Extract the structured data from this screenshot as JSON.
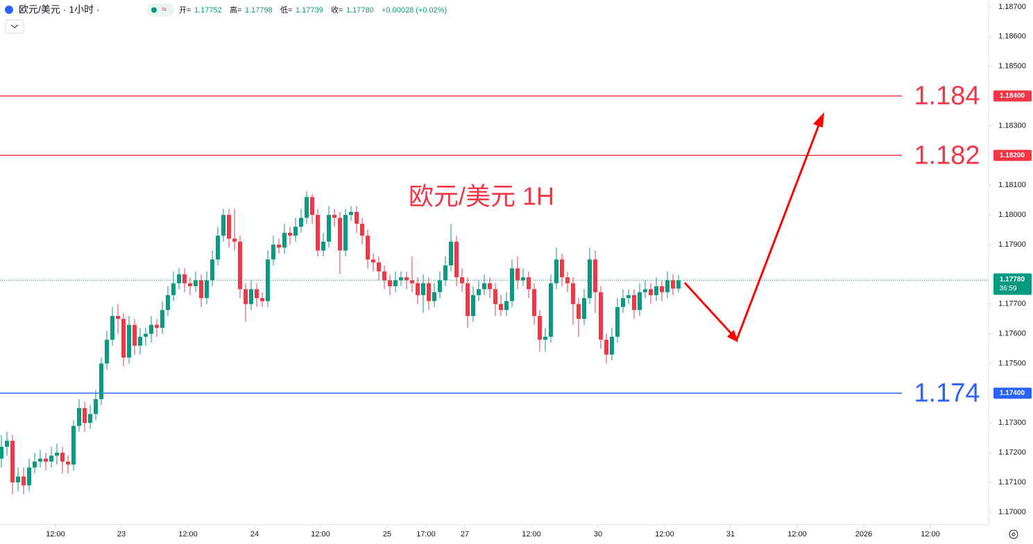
{
  "header": {
    "symbol": "欧元/美元 · 1小时 ·",
    "open_label": "开=",
    "open": "1.17752",
    "high_label": "高=",
    "high": "1.17798",
    "low_label": "低=",
    "low": "1.17739",
    "close_label": "收=",
    "close": "1.17780",
    "change": "+0.00028 (+0.02%)"
  },
  "chart_data": {
    "type": "candlestick",
    "title": "欧元/美元 1H",
    "open": [
      1.1718,
      1.1722,
      1.1724,
      1.171,
      1.1712,
      1.1709,
      1.1715,
      1.1717,
      1.1718,
      1.1717,
      1.1719,
      1.172,
      1.1717,
      1.1716,
      1.1729,
      1.1735,
      1.173,
      1.1733,
      1.1738,
      1.175,
      1.1758,
      1.1766,
      1.1765,
      1.1752,
      1.1763,
      1.1756,
      1.1759,
      1.176,
      1.1763,
      1.1762,
      1.1768,
      1.1773,
      1.1777,
      1.178,
      1.1777,
      1.1776,
      1.1778,
      1.1772,
      1.1778,
      1.1785,
      1.1793,
      1.18,
      1.1792,
      1.1791,
      1.1775,
      1.177,
      1.1775,
      1.1772,
      1.1771,
      1.1785,
      1.179,
      1.1789,
      1.1794,
      1.1793,
      1.1796,
      1.1799,
      1.1806,
      1.18,
      1.1788,
      1.1791,
      1.18,
      1.1799,
      1.1788,
      1.18,
      1.1801,
      1.1797,
      1.1793,
      1.1785,
      1.1784,
      1.1781,
      1.1778,
      1.1776,
      1.1778,
      1.1779,
      1.1778,
      1.1777,
      1.1773,
      1.1777,
      1.1771,
      1.1774,
      1.1778,
      1.1783,
      1.1791,
      1.1779,
      1.1777,
      1.1766,
      1.1773,
      1.1775,
      1.1777,
      1.1775,
      1.177,
      1.1768,
      1.1771,
      1.1782,
      1.1778,
      1.1779,
      1.1775,
      1.1766,
      1.1758,
      1.1759,
      1.1777,
      1.1785,
      1.1779,
      1.1777,
      1.177,
      1.1765,
      1.1772,
      1.1785,
      1.1774,
      1.1758,
      1.1753,
      1.1759,
      1.1769,
      1.1772,
      1.1773,
      1.1768,
      1.1774,
      1.1775,
      1.1773,
      1.1776,
      1.1774,
      1.1778,
      1.17752
    ],
    "high": [
      1.1726,
      1.1727,
      1.1726,
      1.1715,
      1.1715,
      1.1718,
      1.172,
      1.1721,
      1.172,
      1.1722,
      1.1723,
      1.1722,
      1.1719,
      1.1731,
      1.1738,
      1.1737,
      1.1736,
      1.1741,
      1.1752,
      1.1761,
      1.1769,
      1.177,
      1.1767,
      1.1766,
      1.1765,
      1.1762,
      1.1762,
      1.1766,
      1.1765,
      1.1771,
      1.1776,
      1.1781,
      1.1782,
      1.1782,
      1.1779,
      1.1781,
      1.178,
      1.1781,
      1.1788,
      1.1796,
      1.1802,
      1.1802,
      1.1802,
      1.1793,
      1.1777,
      1.1778,
      1.1777,
      1.1774,
      1.1788,
      1.1793,
      1.1792,
      1.1797,
      1.1796,
      1.1799,
      1.1802,
      1.1808,
      1.1807,
      1.1802,
      1.1794,
      1.1803,
      1.1802,
      1.1801,
      1.1802,
      1.1803,
      1.1803,
      1.1799,
      1.1795,
      1.1787,
      1.1786,
      1.1783,
      1.178,
      1.1781,
      1.1781,
      1.1781,
      1.1786,
      1.1779,
      1.178,
      1.1779,
      1.1777,
      1.1781,
      1.1786,
      1.1797,
      1.1793,
      1.1782,
      1.1779,
      1.1776,
      1.1778,
      1.178,
      1.1779,
      1.1777,
      1.1773,
      1.1774,
      1.1785,
      1.1786,
      1.1782,
      1.1781,
      1.1777,
      1.1768,
      1.1762,
      1.178,
      1.1789,
      1.1787,
      1.1781,
      1.1779,
      1.1772,
      1.1775,
      1.1789,
      1.1788,
      1.1776,
      1.176,
      1.1762,
      1.1772,
      1.1775,
      1.1775,
      1.1775,
      1.1777,
      1.1778,
      1.1777,
      1.1779,
      1.1778,
      1.1781,
      1.178,
      1.17798
    ],
    "low": [
      1.1715,
      1.1719,
      1.1706,
      1.1707,
      1.1706,
      1.1707,
      1.1713,
      1.1715,
      1.1714,
      1.1715,
      1.1716,
      1.1713,
      1.1713,
      1.1714,
      1.1727,
      1.1727,
      1.1728,
      1.1731,
      1.1736,
      1.1748,
      1.1756,
      1.176,
      1.1749,
      1.175,
      1.1753,
      1.1753,
      1.1756,
      1.1757,
      1.1759,
      1.176,
      1.1766,
      1.1771,
      1.1775,
      1.1774,
      1.1773,
      1.1774,
      1.1769,
      1.177,
      1.1776,
      1.1783,
      1.1791,
      1.1789,
      1.1788,
      1.1772,
      1.1764,
      1.1768,
      1.1769,
      1.1769,
      1.1769,
      1.1783,
      1.1787,
      1.1787,
      1.179,
      1.1791,
      1.1794,
      1.1797,
      1.1797,
      1.1786,
      1.1786,
      1.1789,
      1.1796,
      1.178,
      1.1786,
      1.1798,
      1.1794,
      1.179,
      1.1782,
      1.1781,
      1.1778,
      1.1775,
      1.1773,
      1.1774,
      1.1776,
      1.1775,
      1.1774,
      1.177,
      1.1767,
      1.1768,
      1.1769,
      1.1772,
      1.1776,
      1.1781,
      1.1776,
      1.1774,
      1.1762,
      1.1764,
      1.1771,
      1.1773,
      1.1772,
      1.1766,
      1.1766,
      1.1766,
      1.1769,
      1.1775,
      1.1776,
      1.1772,
      1.1763,
      1.1754,
      1.1754,
      1.1757,
      1.1775,
      1.1776,
      1.1774,
      1.1763,
      1.1759,
      1.1763,
      1.177,
      1.1767,
      1.1755,
      1.175,
      1.1751,
      1.1757,
      1.1767,
      1.177,
      1.1765,
      1.1766,
      1.1772,
      1.177,
      1.1771,
      1.1771,
      1.1772,
      1.1773,
      1.17739
    ],
    "close": [
      1.1722,
      1.1724,
      1.171,
      1.1712,
      1.1709,
      1.1715,
      1.1717,
      1.1718,
      1.1717,
      1.1719,
      1.172,
      1.1717,
      1.1716,
      1.1729,
      1.1735,
      1.173,
      1.1733,
      1.1738,
      1.175,
      1.1758,
      1.1766,
      1.1765,
      1.1752,
      1.1763,
      1.1756,
      1.1759,
      1.176,
      1.1763,
      1.1762,
      1.1768,
      1.1773,
      1.1777,
      1.178,
      1.1777,
      1.1776,
      1.1778,
      1.1772,
      1.1778,
      1.1785,
      1.1793,
      1.18,
      1.1792,
      1.1791,
      1.1775,
      1.177,
      1.1775,
      1.1772,
      1.1771,
      1.1785,
      1.179,
      1.1789,
      1.1794,
      1.1793,
      1.1796,
      1.1799,
      1.1806,
      1.18,
      1.1788,
      1.1791,
      1.18,
      1.1799,
      1.1788,
      1.18,
      1.1801,
      1.1797,
      1.1793,
      1.1785,
      1.1784,
      1.1781,
      1.1778,
      1.1776,
      1.1778,
      1.1779,
      1.1778,
      1.1777,
      1.1773,
      1.1777,
      1.1771,
      1.1774,
      1.1778,
      1.1783,
      1.1791,
      1.1779,
      1.1777,
      1.1766,
      1.1773,
      1.1775,
      1.1777,
      1.1775,
      1.177,
      1.1768,
      1.1771,
      1.1782,
      1.1778,
      1.1779,
      1.1775,
      1.1766,
      1.1758,
      1.1759,
      1.1777,
      1.1785,
      1.1779,
      1.1777,
      1.177,
      1.1765,
      1.1772,
      1.1785,
      1.1774,
      1.1758,
      1.1753,
      1.1759,
      1.1769,
      1.1772,
      1.1773,
      1.1768,
      1.1774,
      1.1775,
      1.1773,
      1.1776,
      1.1774,
      1.1778,
      1.17752,
      1.1778
    ],
    "up_color": "#089981",
    "down_color": "#f23645",
    "xlim": [
      -0.25,
      177.875
    ],
    "xticks": [
      {
        "value": 9.75,
        "label": "12:00"
      },
      {
        "value": 21.625,
        "label": "23"
      },
      {
        "value": 33.625,
        "label": "12:00"
      },
      {
        "value": 45.625,
        "label": "24"
      },
      {
        "value": 57.5,
        "label": "12:00"
      },
      {
        "value": 69.5,
        "label": "25"
      },
      {
        "value": 76.5,
        "label": "17:00"
      },
      {
        "value": 83.5,
        "label": "27"
      },
      {
        "value": 95.5,
        "label": "12:00"
      },
      {
        "value": 107.5,
        "label": "30"
      },
      {
        "value": 119.5,
        "label": "12:00"
      },
      {
        "value": 131.375,
        "label": "31"
      },
      {
        "value": 143.375,
        "label": "12:00"
      },
      {
        "value": 155.375,
        "label": "2026"
      },
      {
        "value": 167.375,
        "label": "12:00"
      }
    ],
    "ylim": [
      1.16958,
      1.18723
    ],
    "yticks": [
      {
        "value": 1.17,
        "label": "1.17000"
      },
      {
        "value": 1.171,
        "label": "1.17100"
      },
      {
        "value": 1.172,
        "label": "1.17200"
      },
      {
        "value": 1.173,
        "label": "1.17300"
      },
      {
        "value": 1.175,
        "label": "1.17500"
      },
      {
        "value": 1.176,
        "label": "1.17600"
      },
      {
        "value": 1.177,
        "label": "1.17700"
      },
      {
        "value": 1.179,
        "label": "1.17900"
      },
      {
        "value": 1.18,
        "label": "1.18000"
      },
      {
        "value": 1.181,
        "label": "1.18100"
      },
      {
        "value": 1.183,
        "label": "1.18300"
      },
      {
        "value": 1.185,
        "label": "1.18500"
      },
      {
        "value": 1.186,
        "label": "1.18600"
      },
      {
        "value": 1.187,
        "label": "1.18700"
      }
    ],
    "levels": [
      {
        "value": 1.184,
        "tag": "1.18400",
        "color": "#f23645"
      },
      {
        "value": 1.182,
        "tag": "1.18200",
        "color": "#f23645"
      },
      {
        "value": 1.174,
        "tag": "1.17400",
        "color": "#2962ff"
      }
    ],
    "last_price": {
      "value": 1.1778,
      "label": "1.17780",
      "countdown": "36:59",
      "color": "#089981"
    }
  }
}
